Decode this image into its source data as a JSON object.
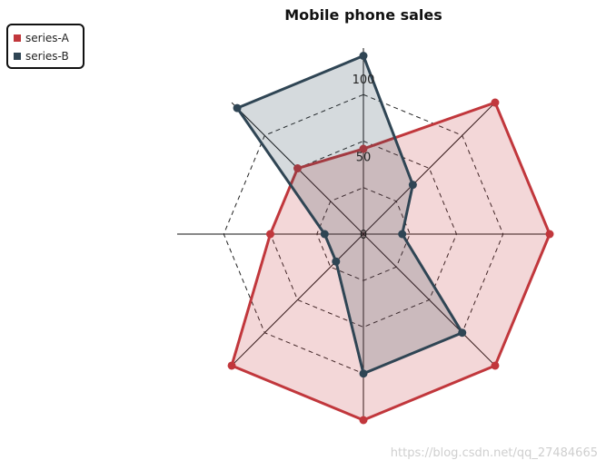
{
  "chart_data": {
    "type": "radar",
    "title": "Mobile phone sales",
    "axes_count": 8,
    "rlim": [
      0,
      120
    ],
    "ticks": [
      "0",
      "50",
      "100"
    ],
    "tick_values": [
      0,
      50,
      100
    ],
    "grid": true,
    "legend_position": "top-left",
    "series": [
      {
        "name": "series-A",
        "color": "#c1373c",
        "values": [
          55,
          120,
          120,
          120,
          120,
          120,
          60,
          60
        ]
      },
      {
        "name": "series-B",
        "color": "#2f4554",
        "values": [
          115,
          45,
          25,
          90,
          90,
          25,
          25,
          115
        ]
      }
    ]
  },
  "watermark": "https://blog.csdn.net/qq_27484665"
}
